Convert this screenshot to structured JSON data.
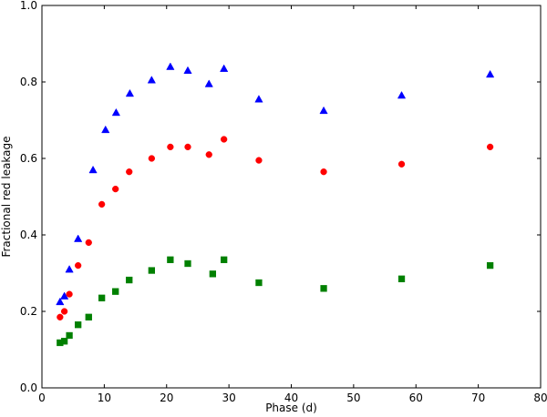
{
  "chart_data": {
    "type": "scatter",
    "title": "",
    "xlabel": "Phase (d)",
    "ylabel": "Fractional red leakage",
    "xlim": [
      0,
      80
    ],
    "ylim": [
      0.0,
      1.0
    ],
    "x_ticks": [
      0,
      10,
      20,
      30,
      40,
      50,
      60,
      70,
      80
    ],
    "x_tick_labels": [
      "0",
      "10",
      "20",
      "30",
      "40",
      "50",
      "60",
      "70",
      "80"
    ],
    "y_ticks": [
      0.0,
      0.2,
      0.4,
      0.6,
      0.8,
      1.0
    ],
    "y_tick_labels": [
      "0.0",
      "0.2",
      "0.4",
      "0.6",
      "0.8",
      "1.0"
    ],
    "grid": false,
    "series": [
      {
        "marker": "triangle",
        "color": "#0000ff",
        "points": [
          [
            2.9,
            0.225
          ],
          [
            3.6,
            0.24
          ],
          [
            4.4,
            0.31
          ],
          [
            5.8,
            0.39
          ],
          [
            8.2,
            0.57
          ],
          [
            10.2,
            0.675
          ],
          [
            11.9,
            0.72
          ],
          [
            14.1,
            0.77
          ],
          [
            17.6,
            0.805
          ],
          [
            20.6,
            0.84
          ],
          [
            23.4,
            0.83
          ],
          [
            26.8,
            0.795
          ],
          [
            29.2,
            0.835
          ],
          [
            34.8,
            0.755
          ],
          [
            45.2,
            0.725
          ],
          [
            57.7,
            0.765
          ],
          [
            71.9,
            0.82
          ]
        ]
      },
      {
        "marker": "circle",
        "color": "#ff0000",
        "points": [
          [
            2.9,
            0.185
          ],
          [
            3.6,
            0.2
          ],
          [
            4.4,
            0.245
          ],
          [
            5.8,
            0.32
          ],
          [
            7.5,
            0.38
          ],
          [
            9.6,
            0.48
          ],
          [
            11.8,
            0.52
          ],
          [
            14.0,
            0.565
          ],
          [
            17.6,
            0.6
          ],
          [
            20.6,
            0.63
          ],
          [
            23.4,
            0.63
          ],
          [
            26.8,
            0.61
          ],
          [
            29.2,
            0.65
          ],
          [
            34.8,
            0.595
          ],
          [
            45.2,
            0.565
          ],
          [
            57.7,
            0.585
          ],
          [
            71.9,
            0.63
          ]
        ]
      },
      {
        "marker": "square",
        "color": "#008000",
        "points": [
          [
            2.9,
            0.118
          ],
          [
            3.6,
            0.122
          ],
          [
            4.4,
            0.137
          ],
          [
            5.8,
            0.165
          ],
          [
            7.5,
            0.185
          ],
          [
            9.6,
            0.235
          ],
          [
            11.8,
            0.252
          ],
          [
            14.0,
            0.282
          ],
          [
            17.6,
            0.307
          ],
          [
            20.6,
            0.335
          ],
          [
            23.4,
            0.325
          ],
          [
            27.4,
            0.298
          ],
          [
            29.2,
            0.335
          ],
          [
            34.8,
            0.275
          ],
          [
            45.2,
            0.26
          ],
          [
            57.7,
            0.285
          ],
          [
            71.9,
            0.32
          ]
        ]
      }
    ]
  }
}
